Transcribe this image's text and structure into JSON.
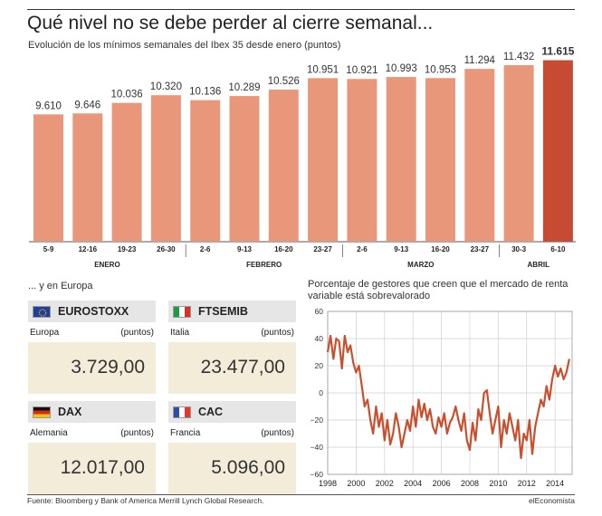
{
  "title": "Qué nivel no se debe perder al cierre semanal...",
  "subtitle": "Evolución de los mínimos semanales del Ibex 35 desde enero (puntos)",
  "europe_title": "... y en Europa",
  "colors": {
    "bar": "#e9977a",
    "bar_highlight": "#c74a32",
    "line": "#c9502e",
    "card_head": "#e6e6e6",
    "card_body": "#f3ecd9"
  },
  "cards": [
    {
      "name": "EUROSTOXX",
      "country": "Europa",
      "unit": "(puntos)",
      "value": "3.729,00",
      "flag": "eu-flag-icon"
    },
    {
      "name": "FTSEMIB",
      "country": "Italia",
      "unit": "(puntos)",
      "value": "23.477,00",
      "flag": "italy-flag-icon"
    },
    {
      "name": "DAX",
      "country": "Alemania",
      "unit": "(puntos)",
      "value": "12.017,00",
      "flag": "germany-flag-icon"
    },
    {
      "name": "CAC",
      "country": "Francia",
      "unit": "(puntos)",
      "value": "5.096,00",
      "flag": "france-flag-icon"
    }
  ],
  "mini_title": "Porcentaje de gestores que creen que el mercado de renta variable está sobrevalorado",
  "source": "Fuente: Bloomberg y Bank of America Merrill Lynch Global Research.",
  "brand": "elEconomista",
  "chart_data": [
    {
      "type": "bar",
      "title": "Qué nivel no se debe perder al cierre semanal...",
      "subtitle": "Evolución de los mínimos semanales del Ibex 35 desde enero (puntos)",
      "categories": [
        "5-9",
        "12-16",
        "19-23",
        "26-30",
        "2-6",
        "9-13",
        "16-20",
        "23-27",
        "2-6",
        "9-13",
        "16-20",
        "23-27",
        "30-3",
        "6-10"
      ],
      "value_labels": [
        "9.610",
        "9.646",
        "10.036",
        "10.320",
        "10.136",
        "10.289",
        "10.526",
        "10.951",
        "10.921",
        "10.993",
        "10.953",
        "11.294",
        "11.432",
        "11.615"
      ],
      "values": [
        9610,
        9646,
        10036,
        10320,
        10136,
        10289,
        10526,
        10951,
        10921,
        10993,
        10953,
        11294,
        11432,
        11615
      ],
      "month_groups": [
        {
          "label": "ENERO",
          "start": 0,
          "end": 3
        },
        {
          "label": "FEBRERO",
          "start": 4,
          "end": 7
        },
        {
          "label": "MARZO",
          "start": 8,
          "end": 11
        },
        {
          "label": "ABRIL",
          "start": 12,
          "end": 13
        }
      ],
      "highlight_index": 13,
      "ylim": [
        4900,
        11900
      ],
      "grid": false,
      "legend": "none"
    },
    {
      "type": "line",
      "title": "Porcentaje de gestores que creen que el mercado de renta variable está sobrevalorado",
      "x_ticks": [
        "1998",
        "2000",
        "2002",
        "2004",
        "2006",
        "2008",
        "2010",
        "2012",
        "2014"
      ],
      "y_ticks": [
        "60",
        "40",
        "20",
        "0",
        "−20",
        "−40",
        "−60"
      ],
      "xlim": [
        1998,
        2015.2
      ],
      "ylim": [
        -60,
        60
      ],
      "grid": true,
      "legend": "none",
      "series": [
        {
          "x": [
            1998.0,
            1998.2,
            1998.4,
            1998.6,
            1998.8,
            1999.0,
            1999.2,
            1999.4,
            1999.6,
            1999.8,
            2000.0,
            2000.2,
            2000.4,
            2000.6,
            2000.8,
            2001.0,
            2001.2,
            2001.4,
            2001.6,
            2001.8,
            2002.0,
            2002.2,
            2002.4,
            2002.6,
            2002.8,
            2003.0,
            2003.2,
            2003.4,
            2003.6,
            2003.8,
            2004.0,
            2004.2,
            2004.4,
            2004.6,
            2004.8,
            2005.0,
            2005.2,
            2005.4,
            2005.6,
            2005.8,
            2006.0,
            2006.2,
            2006.4,
            2006.6,
            2006.8,
            2007.0,
            2007.2,
            2007.4,
            2007.6,
            2007.8,
            2008.0,
            2008.2,
            2008.4,
            2008.6,
            2008.8,
            2009.0,
            2009.2,
            2009.4,
            2009.6,
            2009.8,
            2010.0,
            2010.2,
            2010.4,
            2010.6,
            2010.8,
            2011.0,
            2011.2,
            2011.4,
            2011.6,
            2011.8,
            2012.0,
            2012.2,
            2012.4,
            2012.6,
            2012.8,
            2013.0,
            2013.2,
            2013.4,
            2013.6,
            2013.8,
            2014.0,
            2014.2,
            2014.4,
            2014.6,
            2014.8,
            2015.0
          ],
          "y": [
            30,
            42,
            25,
            40,
            38,
            18,
            42,
            30,
            35,
            22,
            15,
            20,
            5,
            -10,
            -5,
            -20,
            -30,
            -10,
            -25,
            -15,
            -35,
            -20,
            -38,
            -30,
            -15,
            -25,
            -40,
            -30,
            -20,
            -28,
            -10,
            -25,
            -5,
            -18,
            -8,
            -20,
            -12,
            -25,
            -30,
            -18,
            -25,
            -15,
            -30,
            -22,
            -18,
            -10,
            -20,
            -28,
            -15,
            -35,
            -42,
            -22,
            -35,
            -12,
            -20,
            0,
            2,
            -15,
            -30,
            -20,
            -10,
            -40,
            -20,
            -30,
            -15,
            -25,
            -35,
            -20,
            -48,
            -30,
            -35,
            -20,
            -45,
            -25,
            -15,
            -5,
            -10,
            5,
            -5,
            10,
            20,
            12,
            18,
            10,
            15,
            25
          ]
        }
      ]
    }
  ]
}
